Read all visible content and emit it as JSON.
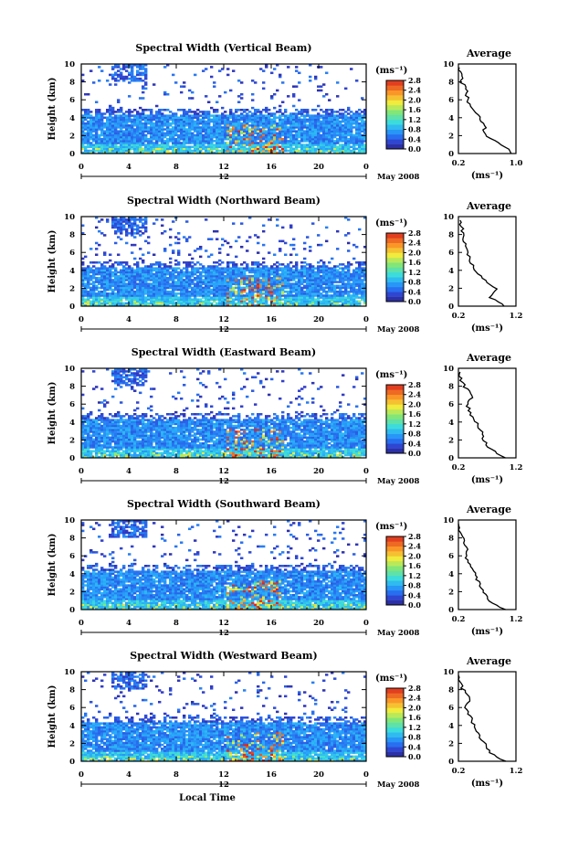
{
  "chart_data": [
    {
      "type": "heatmap",
      "title": "Spectral Width (Vertical Beam)",
      "ylabel": "Height (km)",
      "y_ticks": [
        "0",
        "2",
        "4",
        "6",
        "8",
        "10"
      ],
      "x_ticks": [
        "0",
        "4",
        "8",
        "12",
        "16",
        "20",
        "0"
      ],
      "date_marker": "12",
      "date_label": "May 2008",
      "colorbar_unit": "(ms⁻¹)",
      "colorbar_ticks": [
        "0.0",
        "0.4",
        "0.8",
        "1.2",
        "1.6",
        "2.0",
        "2.4",
        "2.8"
      ],
      "average": {
        "title": "Average",
        "xlabel": "(ms⁻¹)",
        "x_ticks": [
          "0.2",
          "1.0"
        ],
        "xlim": [
          0.2,
          1.0
        ],
        "height_km": [
          0,
          1,
          2,
          3,
          4,
          5,
          6,
          7,
          8,
          9
        ],
        "values": [
          0.95,
          0.8,
          0.6,
          0.55,
          0.5,
          0.4,
          0.33,
          0.3,
          0.25,
          0.22
        ]
      }
    },
    {
      "type": "heatmap",
      "title": "Spectral Width (Northward Beam)",
      "ylabel": "Height (km)",
      "y_ticks": [
        "0",
        "2",
        "4",
        "6",
        "8",
        "10"
      ],
      "x_ticks": [
        "0",
        "4",
        "8",
        "12",
        "16",
        "20",
        "0"
      ],
      "date_marker": "12",
      "date_label": "May 2008",
      "colorbar_unit": "(ms⁻¹)",
      "colorbar_ticks": [
        "0.0",
        "0.4",
        "0.8",
        "1.2",
        "1.6",
        "2.0",
        "2.4",
        "2.8"
      ],
      "average": {
        "title": "Average",
        "xlabel": "(ms⁻¹)",
        "x_ticks": [
          "0.2",
          "1.2"
        ],
        "xlim": [
          0.2,
          1.2
        ],
        "height_km": [
          0,
          1,
          2,
          3,
          4,
          5,
          6,
          7,
          8,
          9
        ],
        "values": [
          1.0,
          0.75,
          0.85,
          0.65,
          0.5,
          0.4,
          0.35,
          0.3,
          0.28,
          0.25
        ]
      }
    },
    {
      "type": "heatmap",
      "title": "Spectral Width (Eastward Beam)",
      "ylabel": "Height (km)",
      "y_ticks": [
        "0",
        "2",
        "4",
        "6",
        "8",
        "10"
      ],
      "x_ticks": [
        "0",
        "4",
        "8",
        "12",
        "16",
        "20",
        "0"
      ],
      "date_marker": "12",
      "date_label": "May 2008",
      "colorbar_unit": "(ms⁻¹)",
      "colorbar_ticks": [
        "0.0",
        "0.4",
        "0.8",
        "1.2",
        "1.6",
        "2.0",
        "2.4",
        "2.8"
      ],
      "average": {
        "title": "Average",
        "xlabel": "(ms⁻¹)",
        "x_ticks": [
          "0.2",
          "1.2"
        ],
        "xlim": [
          0.2,
          1.2
        ],
        "height_km": [
          0,
          1,
          2,
          3,
          4,
          5,
          6,
          7,
          8,
          9
        ],
        "values": [
          1.0,
          0.75,
          0.65,
          0.6,
          0.5,
          0.4,
          0.35,
          0.45,
          0.3,
          0.22
        ]
      }
    },
    {
      "type": "heatmap",
      "title": "Spectral Width (Southward Beam)",
      "ylabel": "Height (km)",
      "y_ticks": [
        "0",
        "2",
        "4",
        "6",
        "8",
        "10"
      ],
      "x_ticks": [
        "0",
        "4",
        "8",
        "12",
        "16",
        "20",
        "0"
      ],
      "date_marker": "12",
      "date_label": "May 2008",
      "colorbar_unit": "(ms⁻¹)",
      "colorbar_ticks": [
        "0.0",
        "0.4",
        "0.8",
        "1.2",
        "1.6",
        "2.0",
        "2.4",
        "2.8"
      ],
      "average": {
        "title": "Average",
        "xlabel": "(ms⁻¹)",
        "x_ticks": [
          "0.2",
          "1.2"
        ],
        "xlim": [
          0.2,
          1.2
        ],
        "height_km": [
          0,
          1,
          2,
          3,
          4,
          5,
          6,
          7,
          8,
          9
        ],
        "values": [
          1.0,
          0.75,
          0.65,
          0.55,
          0.48,
          0.4,
          0.32,
          0.35,
          0.28,
          0.22
        ]
      }
    },
    {
      "type": "heatmap",
      "title": "Spectral Width (Westward Beam)",
      "ylabel": "Height (km)",
      "y_ticks": [
        "0",
        "2",
        "4",
        "6",
        "8",
        "10"
      ],
      "x_ticks": [
        "0",
        "4",
        "8",
        "12",
        "16",
        "20",
        "0"
      ],
      "date_marker": "12",
      "date_label": "May 2008",
      "xlabel": "Local Time",
      "colorbar_unit": "(ms⁻¹)",
      "colorbar_ticks": [
        "0.0",
        "0.4",
        "0.8",
        "1.2",
        "1.6",
        "2.0",
        "2.4",
        "2.8"
      ],
      "average": {
        "title": "Average",
        "xlabel": "(ms⁻¹)",
        "x_ticks": [
          "0.2",
          "1.2"
        ],
        "xlim": [
          0.2,
          1.2
        ],
        "height_km": [
          0,
          1,
          2,
          3,
          4,
          5,
          6,
          7,
          8,
          9
        ],
        "values": [
          1.0,
          0.75,
          0.65,
          0.55,
          0.48,
          0.4,
          0.32,
          0.4,
          0.28,
          0.22
        ]
      }
    }
  ]
}
